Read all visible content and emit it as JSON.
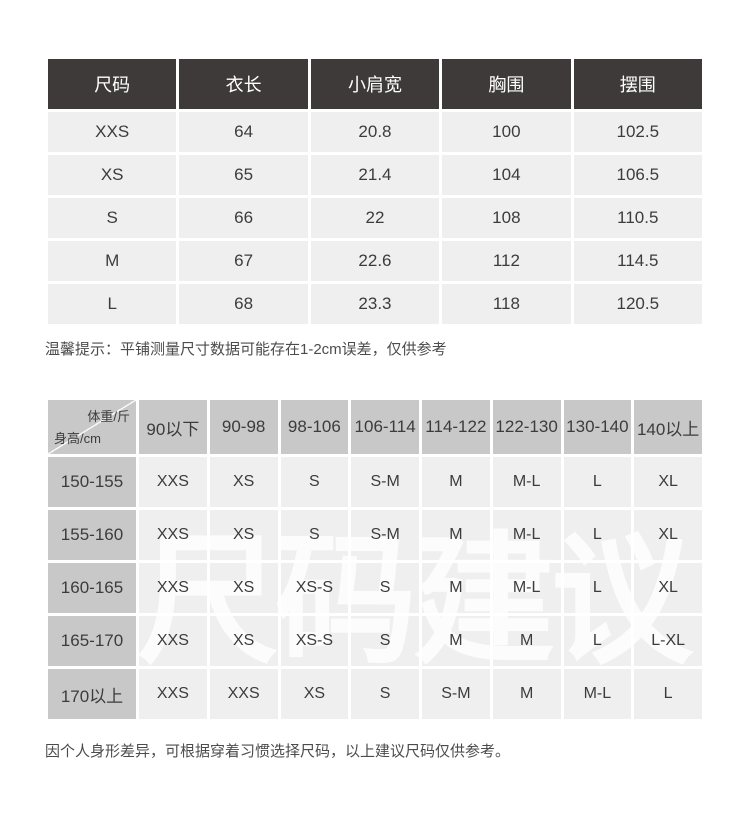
{
  "colors": {
    "dark_header_bg": "#3e3a39",
    "dark_header_text": "#ffffff",
    "cell_bg": "#efefef",
    "gray_header_bg": "#c8c8c8",
    "cell_text": "#3c3c3c",
    "note_text": "#4c4c4c",
    "page_bg": "#ffffff"
  },
  "notes": {
    "tip": "温馨提示：平铺测量尺寸数据可能存在1-2cm误差，仅供参考",
    "bottom": "因个人身形差异，可根据穿着习惯选择尺码，以上建议尺码仅供参考。"
  },
  "chart_data": [
    {
      "type": "table",
      "columns": [
        "尺码",
        "衣长",
        "小肩宽",
        "胸围",
        "摆围"
      ],
      "rows": [
        [
          "XXS",
          "64",
          "20.8",
          "100",
          "102.5"
        ],
        [
          "XS",
          "65",
          "21.4",
          "104",
          "106.5"
        ],
        [
          "S",
          "66",
          "22",
          "108",
          "110.5"
        ],
        [
          "M",
          "67",
          "22.6",
          "112",
          "114.5"
        ],
        [
          "L",
          "68",
          "23.3",
          "118",
          "120.5"
        ]
      ]
    },
    {
      "type": "table",
      "corner_top_right": "体重/斤",
      "corner_bottom_left": "身高/cm",
      "columns": [
        "90以下",
        "90-98",
        "98-106",
        "106-114",
        "114-122",
        "122-130",
        "130-140",
        "140以上"
      ],
      "row_labels": [
        "150-155",
        "155-160",
        "160-165",
        "165-170",
        "170以上"
      ],
      "rows": [
        [
          "XXS",
          "XS",
          "S",
          "S-M",
          "M",
          "M-L",
          "L",
          "XL"
        ],
        [
          "XXS",
          "XS",
          "S",
          "S-M",
          "M",
          "M-L",
          "L",
          "XL"
        ],
        [
          "XXS",
          "XS",
          "XS-S",
          "S",
          "M",
          "M-L",
          "L",
          "XL"
        ],
        [
          "XXS",
          "XS",
          "XS-S",
          "S",
          "M",
          "M",
          "L",
          "L-XL"
        ],
        [
          "XXS",
          "XXS",
          "XS",
          "S",
          "S-M",
          "M",
          "M-L",
          "L"
        ]
      ],
      "watermark": "尺码建议"
    }
  ]
}
